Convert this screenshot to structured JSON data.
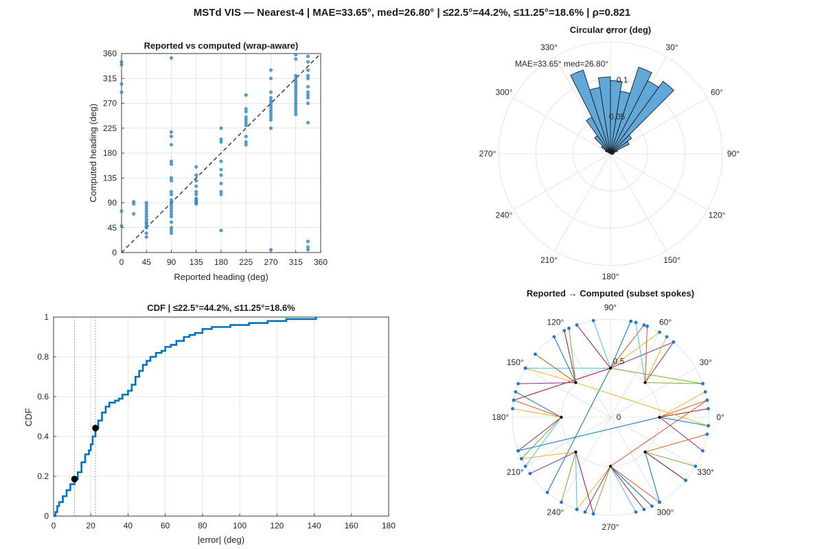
{
  "suptitle": "MSTd VIS — Nearest-4  |  MAE=33.65°, med=26.80° | ≤22.5°=44.2%, ≤11.25°=18.6% | ρ=0.821",
  "colors": {
    "scatter": "#2e86c1",
    "cdf_line": "#0072bd",
    "rose_fill": "#5fa8d9",
    "rose_edge": "#1a1a1a",
    "grid": "#dedede"
  },
  "chart_data": [
    {
      "type": "scatter",
      "title": "Reported vs computed (wrap-aware)",
      "xlabel": "Reported heading (deg)",
      "ylabel": "Computed heading (deg)",
      "xlim": [
        0,
        360
      ],
      "ylim": [
        0,
        360
      ],
      "xticks": [
        "0",
        "45",
        "90",
        "135",
        "180",
        "225",
        "270",
        "315",
        "360"
      ],
      "yticks": [
        "0",
        "45",
        "90",
        "135",
        "180",
        "225",
        "270",
        "315",
        "360"
      ],
      "grid": true,
      "identity_line": true,
      "x": [
        0,
        0,
        0,
        0,
        0,
        0,
        22,
        22,
        22,
        45,
        45,
        45,
        45,
        45,
        45,
        45,
        45,
        45,
        45,
        45,
        45,
        45,
        90,
        90,
        90,
        90,
        90,
        90,
        90,
        90,
        90,
        90,
        90,
        90,
        90,
        90,
        90,
        90,
        90,
        90,
        90,
        90,
        90,
        135,
        135,
        135,
        135,
        135,
        135,
        135,
        135,
        135,
        135,
        135,
        180,
        180,
        180,
        180,
        180,
        180,
        180,
        180,
        180,
        180,
        225,
        225,
        225,
        225,
        225,
        225,
        225,
        225,
        225,
        225,
        270,
        270,
        270,
        270,
        270,
        270,
        270,
        270,
        270,
        270,
        270,
        270,
        270,
        270,
        315,
        315,
        315,
        315,
        315,
        315,
        315,
        315,
        315,
        315,
        315,
        315,
        315,
        315,
        315,
        315,
        315,
        337,
        337,
        337,
        337,
        337,
        337,
        337,
        337,
        337,
        337,
        337,
        337,
        337,
        337
      ],
      "y": [
        345,
        340,
        305,
        290,
        75,
        48,
        92,
        88,
        70,
        90,
        85,
        80,
        75,
        70,
        65,
        60,
        55,
        52,
        48,
        45,
        35,
        28,
        352,
        218,
        210,
        195,
        165,
        160,
        135,
        130,
        110,
        105,
        95,
        90,
        85,
        80,
        75,
        70,
        65,
        55,
        45,
        40,
        35,
        155,
        140,
        130,
        120,
        110,
        105,
        98,
        95,
        92,
        90,
        88,
        225,
        205,
        200,
        165,
        150,
        140,
        125,
        110,
        105,
        40,
        285,
        260,
        255,
        245,
        240,
        235,
        230,
        210,
        200,
        195,
        330,
        315,
        290,
        280,
        275,
        270,
        265,
        260,
        255,
        250,
        245,
        240,
        225,
        5,
        358,
        350,
        320,
        315,
        310,
        305,
        300,
        295,
        290,
        285,
        280,
        275,
        270,
        265,
        260,
        255,
        250,
        355,
        345,
        330,
        320,
        315,
        300,
        290,
        285,
        280,
        270,
        235,
        20,
        10,
        5
      ]
    },
    {
      "type": "polar_histogram",
      "title": "Circular error (deg)",
      "theta_zero": "top",
      "theta_direction": "clockwise",
      "theta_ticks": [
        "0°",
        "30°",
        "60°",
        "90°",
        "120°",
        "150°",
        "180°",
        "210°",
        "240°",
        "270°",
        "300°",
        "330°"
      ],
      "r_ticks": [
        "0.05",
        "0.1"
      ],
      "rmax": 0.15,
      "bin_centers_deg": [
        -58.5,
        -49.5,
        -40.5,
        -31.5,
        -22.5,
        -13.5,
        -4.5,
        4.5,
        13.5,
        22.5,
        31.5,
        40.5,
        49.5,
        58.5,
        67.5,
        76.5,
        85.5,
        94.5,
        103.5,
        112.5
      ],
      "values": [
        0.008,
        0.015,
        0.03,
        0.055,
        0.118,
        0.09,
        0.103,
        0.098,
        0.085,
        0.122,
        0.11,
        0.12,
        0.035,
        0.028,
        0.01,
        0.005,
        0.002,
        0.004,
        0.003,
        0.002
      ],
      "annotation": "MAE=33.65°   med=26.80°"
    },
    {
      "type": "line",
      "title": "CDF  |  ≤22.5°=44.2%, ≤11.25°=18.6%",
      "xlabel": "|error| (deg)",
      "ylabel": "CDF",
      "xlim": [
        0,
        180
      ],
      "ylim": [
        0,
        1
      ],
      "xticks": [
        "0",
        "20",
        "40",
        "60",
        "80",
        "100",
        "120",
        "140",
        "160",
        "180"
      ],
      "yticks": [
        "0",
        "0.2",
        "0.4",
        "0.6",
        "0.8",
        "1"
      ],
      "grid": true,
      "series": [
        {
          "x": [
            0,
            1,
            2,
            3,
            5,
            7,
            9,
            11.25,
            13,
            15,
            17,
            19,
            20,
            21,
            22.5,
            24,
            26,
            28,
            30,
            33,
            35,
            37,
            40,
            42,
            44,
            46,
            48,
            50,
            52,
            55,
            58,
            60,
            63,
            66,
            70,
            73,
            76,
            80,
            85,
            95,
            105,
            115,
            125,
            135,
            141
          ],
          "y": [
            0,
            0.02,
            0.05,
            0.07,
            0.1,
            0.13,
            0.16,
            0.186,
            0.22,
            0.27,
            0.31,
            0.33,
            0.36,
            0.4,
            0.442,
            0.48,
            0.52,
            0.55,
            0.57,
            0.58,
            0.59,
            0.61,
            0.63,
            0.66,
            0.7,
            0.73,
            0.76,
            0.78,
            0.8,
            0.82,
            0.83,
            0.85,
            0.86,
            0.88,
            0.9,
            0.91,
            0.92,
            0.94,
            0.95,
            0.96,
            0.97,
            0.98,
            0.99,
            0.99,
            1.0
          ]
        }
      ],
      "markers": [
        {
          "x": 11.25,
          "y": 0.186
        },
        {
          "x": 22.5,
          "y": 0.442
        }
      ],
      "vlines": [
        11.25,
        22.5
      ]
    },
    {
      "type": "polar_spokes",
      "title": "Reported → Computed (subset spokes)",
      "theta_zero": "right",
      "theta_direction": "counterclockwise",
      "theta_ticks": [
        "0°",
        "30°",
        "60°",
        "90°",
        "120°",
        "150°",
        "180°",
        "210°",
        "240°",
        "270°",
        "300°",
        "330°"
      ],
      "r_ticks": [
        "0",
        "0.5"
      ],
      "reported_radius": 0.5,
      "computed_radius": 1.0,
      "reported_deg": [
        90,
        90,
        90,
        90,
        90,
        90,
        90,
        90,
        45,
        45,
        45,
        45,
        45,
        0,
        0,
        0,
        0,
        0,
        315,
        315,
        315,
        315,
        315,
        270,
        270,
        270,
        270,
        270,
        270,
        270,
        225,
        225,
        225,
        225,
        225,
        180,
        180,
        180,
        180,
        180,
        180,
        135,
        135,
        135,
        135,
        135,
        135,
        90,
        90,
        0,
        270,
        135
      ],
      "computed_deg": [
        78,
        70,
        60,
        50,
        20,
        150,
        170,
        230,
        68,
        55,
        50,
        20,
        75,
        5,
        -5,
        10,
        15,
        -20,
        -30,
        -40,
        320,
        300,
        350,
        250,
        255,
        260,
        285,
        290,
        295,
        300,
        205,
        215,
        240,
        250,
        260,
        165,
        170,
        175,
        200,
        205,
        210,
        118,
        125,
        140,
        150,
        160,
        115,
        100,
        110,
        200,
        10,
        355
      ]
    }
  ]
}
